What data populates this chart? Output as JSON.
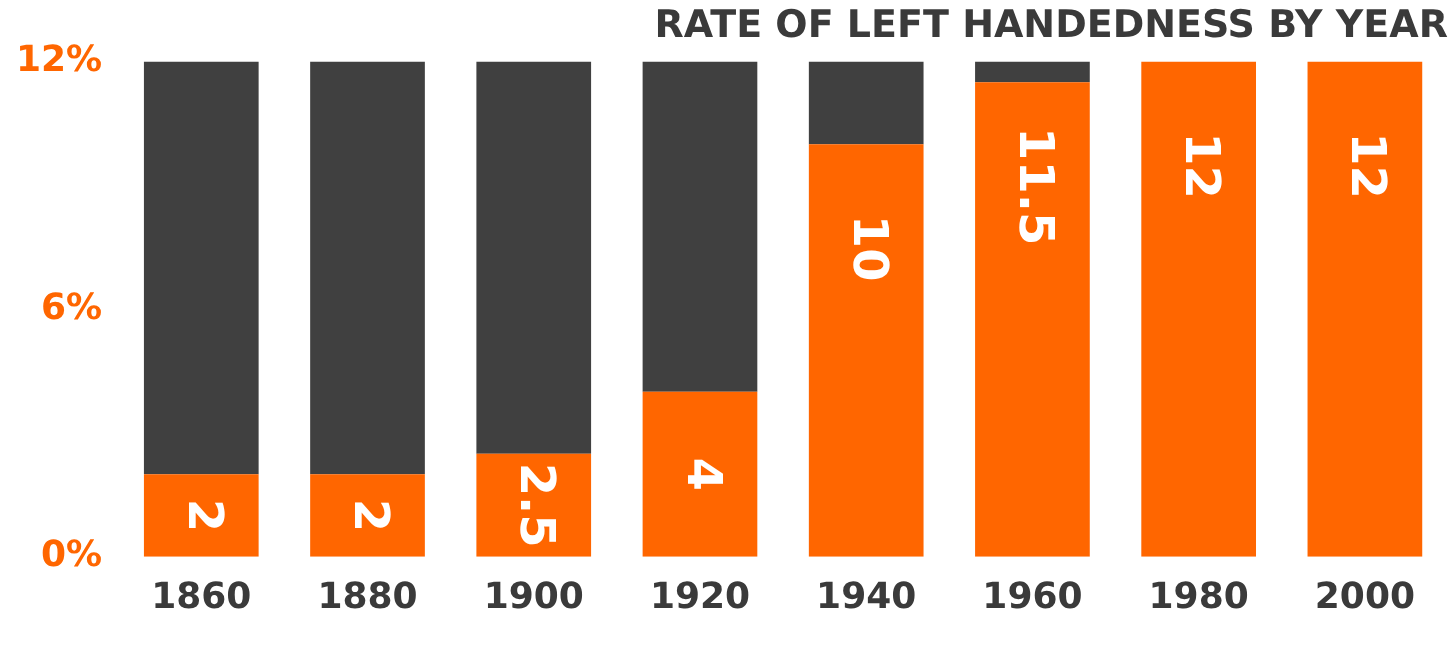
{
  "chart_data": {
    "type": "bar",
    "title": "RATE OF LEFT HANDEDNESS BY YEAR",
    "stacked": true,
    "categories": [
      "1860",
      "1880",
      "1900",
      "1920",
      "1940",
      "1960",
      "1980",
      "2000"
    ],
    "series": [
      {
        "color": "#ff6600",
        "values": [
          2,
          2,
          2.5,
          4,
          10,
          11.5,
          12,
          12
        ],
        "value_labels": [
          "2",
          "2",
          "2.5",
          "4",
          "10",
          "11.5",
          "12",
          "12"
        ]
      },
      {
        "color": "#404040",
        "values": [
          10,
          10,
          9.5,
          8,
          2,
          0.5,
          0,
          0
        ]
      }
    ],
    "ylim": [
      0,
      12
    ],
    "yticks": [
      {
        "value": 0,
        "label": "0%"
      },
      {
        "value": 6,
        "label": "6%"
      },
      {
        "value": 12,
        "label": "12%"
      }
    ],
    "grid": false,
    "legend": false
  }
}
